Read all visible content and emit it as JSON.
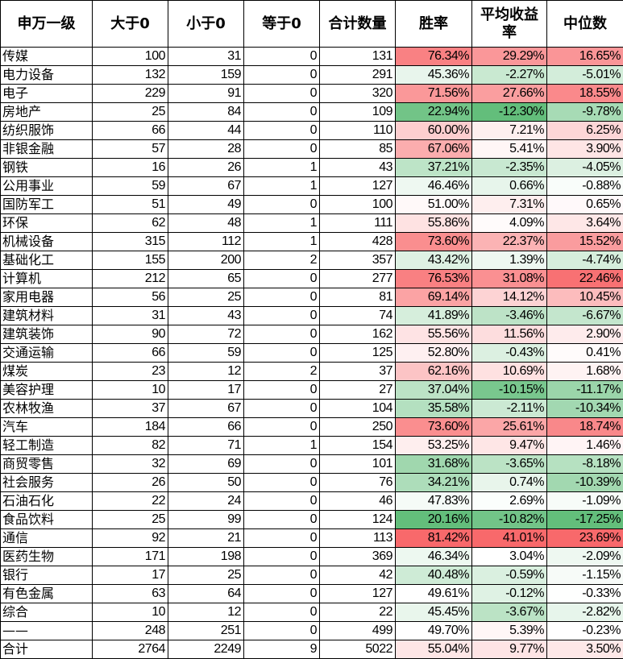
{
  "chart_data": {
    "type": "table",
    "columns": [
      "申万一级",
      "大于0",
      "小于0",
      "等于0",
      "合计数量",
      "胜率",
      "平均收益率",
      "中位数"
    ],
    "color_scale": {
      "low": "#63BE7B",
      "mid": "#FFFFFF",
      "high": "#F8696B",
      "applies_to": [
        "胜率",
        "平均收益率",
        "中位数"
      ]
    },
    "rows": [
      [
        "传媒",
        100,
        31,
        0,
        131,
        "76.34%",
        "29.29%",
        "16.65%"
      ],
      [
        "电力设备",
        132,
        159,
        0,
        291,
        "45.36%",
        "-2.27%",
        "-5.01%"
      ],
      [
        "电子",
        229,
        91,
        0,
        320,
        "71.56%",
        "27.66%",
        "18.55%"
      ],
      [
        "房地产",
        25,
        84,
        0,
        109,
        "22.94%",
        "-12.30%",
        "-9.78%"
      ],
      [
        "纺织服饰",
        66,
        44,
        0,
        110,
        "60.00%",
        "7.21%",
        "6.25%"
      ],
      [
        "非银金融",
        57,
        28,
        0,
        85,
        "67.06%",
        "5.41%",
        "3.90%"
      ],
      [
        "钢铁",
        16,
        26,
        1,
        43,
        "37.21%",
        "-2.35%",
        "-4.05%"
      ],
      [
        "公用事业",
        59,
        67,
        1,
        127,
        "46.46%",
        "0.66%",
        "-0.88%"
      ],
      [
        "国防军工",
        51,
        49,
        0,
        100,
        "51.00%",
        "7.31%",
        "0.65%"
      ],
      [
        "环保",
        62,
        48,
        1,
        111,
        "55.86%",
        "4.09%",
        "3.64%"
      ],
      [
        "机械设备",
        315,
        112,
        1,
        428,
        "73.60%",
        "22.37%",
        "15.52%"
      ],
      [
        "基础化工",
        155,
        200,
        2,
        357,
        "43.42%",
        "1.39%",
        "-4.74%"
      ],
      [
        "计算机",
        212,
        65,
        0,
        277,
        "76.53%",
        "31.08%",
        "22.46%"
      ],
      [
        "家用电器",
        56,
        25,
        0,
        81,
        "69.14%",
        "14.12%",
        "10.45%"
      ],
      [
        "建筑材料",
        31,
        43,
        0,
        74,
        "41.89%",
        "-3.46%",
        "-6.67%"
      ],
      [
        "建筑装饰",
        90,
        72,
        0,
        162,
        "55.56%",
        "11.56%",
        "2.90%"
      ],
      [
        "交通运输",
        66,
        59,
        0,
        125,
        "52.80%",
        "-0.43%",
        "0.41%"
      ],
      [
        "煤炭",
        23,
        12,
        2,
        37,
        "62.16%",
        "10.69%",
        "1.68%"
      ],
      [
        "美容护理",
        10,
        17,
        0,
        27,
        "37.04%",
        "-10.15%",
        "-11.17%"
      ],
      [
        "农林牧渔",
        37,
        67,
        0,
        104,
        "35.58%",
        "-2.11%",
        "-10.34%"
      ],
      [
        "汽车",
        184,
        66,
        0,
        250,
        "73.60%",
        "25.61%",
        "18.74%"
      ],
      [
        "轻工制造",
        82,
        71,
        1,
        154,
        "53.25%",
        "9.47%",
        "1.46%"
      ],
      [
        "商贸零售",
        32,
        69,
        0,
        101,
        "31.68%",
        "-3.65%",
        "-8.18%"
      ],
      [
        "社会服务",
        26,
        50,
        0,
        76,
        "34.21%",
        "0.74%",
        "-10.39%"
      ],
      [
        "石油石化",
        22,
        24,
        0,
        46,
        "47.83%",
        "2.69%",
        "-1.09%"
      ],
      [
        "食品饮料",
        25,
        99,
        0,
        124,
        "20.16%",
        "-10.82%",
        "-17.25%"
      ],
      [
        "通信",
        92,
        21,
        0,
        113,
        "81.42%",
        "41.01%",
        "23.69%"
      ],
      [
        "医药生物",
        171,
        198,
        0,
        369,
        "46.34%",
        "3.04%",
        "-2.09%"
      ],
      [
        "银行",
        17,
        25,
        0,
        42,
        "40.48%",
        "-0.59%",
        "-1.15%"
      ],
      [
        "有色金属",
        63,
        64,
        0,
        127,
        "49.61%",
        "-0.12%",
        "-0.33%"
      ],
      [
        "综合",
        10,
        12,
        0,
        22,
        "45.45%",
        "-3.67%",
        "-2.82%"
      ],
      [
        "——",
        248,
        251,
        0,
        499,
        "49.70%",
        "5.39%",
        "-0.23%"
      ],
      [
        "合计",
        2764,
        2249,
        9,
        5022,
        "55.04%",
        "9.77%",
        "3.50%"
      ]
    ]
  }
}
